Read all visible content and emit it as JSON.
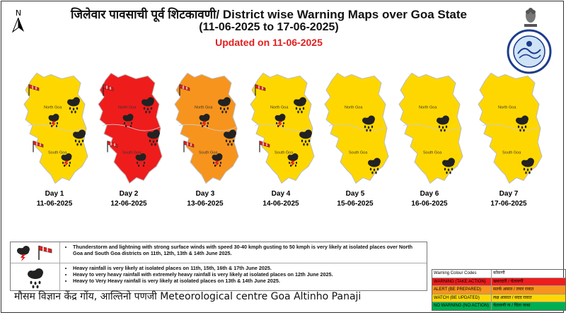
{
  "header": {
    "title": "जिलेवार पावसाची पूर्व शिटकावणी/ District wise Warning Maps over Goa State",
    "date_range": "(11-06-2025 to 17-06-2025)",
    "updated": "Updated on 11-06-2025",
    "north_label": "N"
  },
  "colors": {
    "red": "#ef1c1c",
    "orange": "#f7941d",
    "yellow": "#ffd700",
    "green": "#00b050",
    "updated": "#e02020"
  },
  "days": [
    {
      "label": "Day 1",
      "date": "11-06-2025",
      "north": "yellow",
      "south": "yellow",
      "north_text": "North Goa",
      "south_text": "South Goa",
      "icons": [
        "thunder",
        "rain"
      ]
    },
    {
      "label": "Day 2",
      "date": "12-06-2025",
      "north": "red",
      "south": "red",
      "north_text": "North Goa",
      "south_text": "South Goa",
      "icons": [
        "thunder",
        "rain"
      ]
    },
    {
      "label": "Day 3",
      "date": "13-06-2025",
      "north": "orange",
      "south": "orange",
      "north_text": "North Goa",
      "south_text": "South Goa",
      "icons": [
        "thunder",
        "rain"
      ]
    },
    {
      "label": "Day 4",
      "date": "14-06-2025",
      "north": "yellow",
      "south": "yellow",
      "north_text": "North Goa",
      "south_text": "South Goa",
      "icons": [
        "thunder",
        "rain"
      ]
    },
    {
      "label": "Day 5",
      "date": "15-06-2025",
      "north": "yellow",
      "south": "yellow",
      "north_text": "North Goa",
      "south_text": "South Goa",
      "icons": [
        "rain"
      ]
    },
    {
      "label": "Day 6",
      "date": "16-06-2025",
      "north": "yellow",
      "south": "yellow",
      "north_text": "North Goa",
      "south_text": "South Goa",
      "icons": [
        "rain"
      ]
    },
    {
      "label": "Day 7",
      "date": "17-06-2025",
      "north": "yellow",
      "south": "yellow",
      "north_text": "North Goa",
      "south_text": "South Goa",
      "icons": [
        "rain"
      ]
    }
  ],
  "legend": {
    "thunder": "Thunderstorm and lightning with strong surface winds with speed 30-40 kmph gusting to 50 kmph is very likely at isolated places over North Goa and South Goa districts on 11th, 12th, 13th & 14th June 2025.",
    "rain": [
      "Heavy rainfall is very likely at isolated places on 11th, 15th, 16th & 17th June 2025.",
      "Heavy to very heavy rainfall with extremely heavy rainfall is very likely at isolated places on 12th June 2025.",
      "Heavy to Very Heavy rainfall is very likely at isolated places on 13th & 14th June 2025."
    ]
  },
  "codes": {
    "header_en": "Warning Colour Codes",
    "header_mr": "कोंकणी",
    "rows": [
      {
        "en": "WARNING (TAKE ACTION)",
        "mr": "खबरदारी / चेतावणी",
        "color": "#ef1c1c"
      },
      {
        "en": "ALERT (BE PREPARED)",
        "mr": "सतर्क असात / तयार रावात",
        "color": "#f7941d"
      },
      {
        "en": "WATCH (BE UPDATED)",
        "mr": "लक्ष आसात / सदद रावात",
        "color": "#ffd700"
      },
      {
        "en": "NO WARNING (NO ACTION)",
        "mr": "चेतावणी ना / चिंता नाका",
        "color": "#00b050"
      }
    ]
  },
  "footer": "मौसम विज्ञान केंद्र गोंय, आल्तिनो पणजी  Meteorological centre Goa Altinho Panaji"
}
